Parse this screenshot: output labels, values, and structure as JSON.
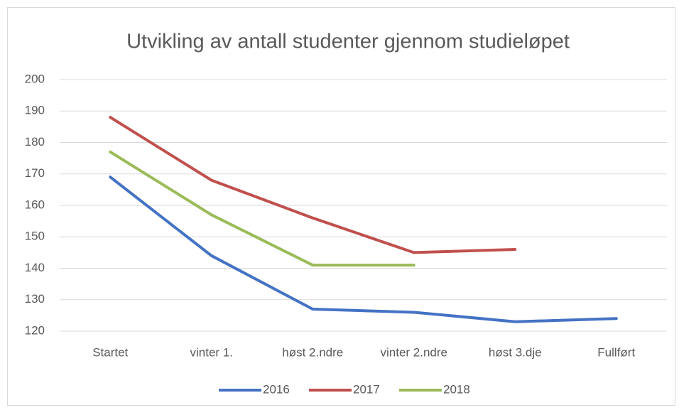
{
  "chart_data": {
    "type": "line",
    "title": "Utvikling av antall studenter gjennom studieløpet",
    "categories": [
      "Startet",
      "vinter 1.",
      "høst 2.ndre",
      "vinter 2.ndre",
      "høst 3.dje",
      "Fullført"
    ],
    "series": [
      {
        "name": "2016",
        "color": "#4472c4",
        "values": [
          169,
          144,
          127,
          126,
          123,
          124
        ]
      },
      {
        "name": "2017",
        "color": "#c0504d",
        "values": [
          188,
          168,
          156,
          145,
          146,
          null
        ]
      },
      {
        "name": "2018",
        "color": "#9bbb59",
        "values": [
          177,
          157,
          141,
          141,
          null,
          null
        ]
      }
    ],
    "ylim": [
      120,
      200
    ],
    "yticks": [
      120,
      130,
      140,
      150,
      160,
      170,
      180,
      190,
      200
    ],
    "grid": true,
    "legend": "bottom"
  }
}
